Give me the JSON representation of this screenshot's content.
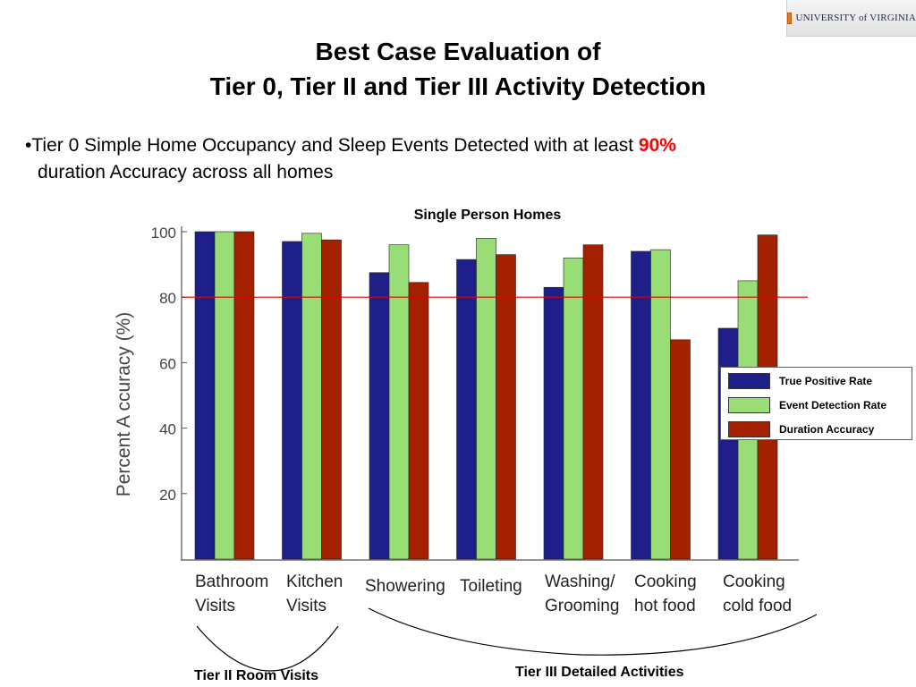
{
  "logo": {
    "text": "UNIVERSITY of VIRGINIA"
  },
  "slide": {
    "title_line1": "Best Case Evaluation of",
    "title_line2": "Tier 0, Tier II and Tier III Activity Detection",
    "bullet_line1": "•Tier 0 Simple Home Occupancy and Sleep Events Detected with at least ",
    "bullet_highlight": "90%",
    "bullet_line2": "duration Accuracy across all homes",
    "highlight_color": "#ff0000"
  },
  "chart_data": {
    "type": "bar",
    "title": "Single Person Homes",
    "ylabel": "Percent A ccuracy (%)",
    "ylim": [
      0,
      100
    ],
    "yticks": [
      20,
      40,
      60,
      80,
      100
    ],
    "reference_line": 80,
    "reference_line_color": "#e00000",
    "categories": [
      [
        "Bathroom",
        "Visits"
      ],
      [
        "Kitchen",
        "Visits"
      ],
      [
        "Showering"
      ],
      [
        "Toileting"
      ],
      [
        "Washing/",
        "Grooming"
      ],
      [
        "Cooking",
        "hot  food"
      ],
      [
        "Cooking",
        "cold  food"
      ]
    ],
    "series": [
      {
        "name": "True Positive Rate",
        "color": "#1f1f8a",
        "values": [
          100,
          97,
          87.5,
          91.5,
          83,
          94,
          70.5
        ]
      },
      {
        "name": "Event Detection Rate",
        "color": "#99dd77",
        "values": [
          100,
          99.5,
          96,
          98,
          92,
          94.5,
          85
        ]
      },
      {
        "name": "Duration Accuracy",
        "color": "#a32000",
        "values": [
          100,
          97.5,
          84.5,
          93,
          96,
          67,
          99
        ]
      }
    ],
    "legend_position": "right",
    "grid": false,
    "groupings": [
      {
        "label": "Tier II Room Visits"
      },
      {
        "label": "Tier III Detailed Activities"
      }
    ]
  }
}
